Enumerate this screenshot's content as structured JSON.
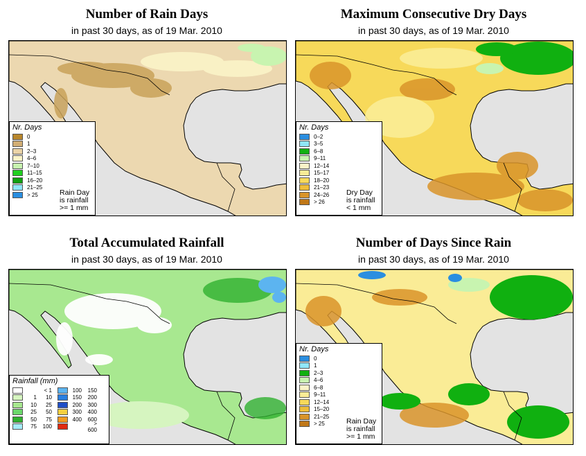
{
  "colors": {
    "ocean": "#e3e3e3",
    "dry_brown": "#c9a25a",
    "light_tan": "#f0e2c2",
    "border": "#000000"
  },
  "panels": [
    {
      "title": "Number of Rain Days",
      "subtitle": "in past 30 days, as of  19 Mar. 2010",
      "legend_title": "Nr. Days",
      "legend": [
        {
          "label": "0",
          "color": "#b8862c"
        },
        {
          "label": "1",
          "color": "#d2ae74"
        },
        {
          "label": "2–3",
          "color": "#ead3a6"
        },
        {
          "label": "4–6",
          "color": "#fbf4c8"
        },
        {
          "label": "7–10",
          "color": "#c8f4b0"
        },
        {
          "label": "11–15",
          "color": "#20d020"
        },
        {
          "label": "16–20",
          "color": "#10a010"
        },
        {
          "label": "21–25",
          "color": "#90e6f8"
        },
        {
          "label": "> 25",
          "color": "#2a8ee0"
        }
      ],
      "note": [
        "Rain Day",
        "is rainfall",
        ">= 1 mm"
      ]
    },
    {
      "title": "Maximum Consecutive Dry Days",
      "subtitle": "in past 30 days, as of  19 Mar. 2010",
      "legend_title": "Nr. Days",
      "legend": [
        {
          "label": "0–2",
          "color": "#2a8ee0"
        },
        {
          "label": "3–5",
          "color": "#90e6f8"
        },
        {
          "label": "6–8",
          "color": "#10b010"
        },
        {
          "label": "9–11",
          "color": "#c8f4b0"
        },
        {
          "label": "12–14",
          "color": "#fbf4c8"
        },
        {
          "label": "15–17",
          "color": "#faec96"
        },
        {
          "label": "18–20",
          "color": "#f7d95a"
        },
        {
          "label": "21–23",
          "color": "#eebd3a"
        },
        {
          "label": "24–26",
          "color": "#d9942a"
        },
        {
          "label": "> 26",
          "color": "#c07818"
        }
      ],
      "note": [
        "Dry Day",
        "is rainfall",
        "< 1 mm"
      ]
    },
    {
      "title": "Total Accumulated Rainfall",
      "subtitle": "in past 30 days, as of  19 Mar. 2010",
      "legend_title": "Rainfall (mm)",
      "legend_col1": [
        {
          "lo": "",
          "hi": "< 1",
          "color": "#ffffff"
        },
        {
          "lo": "1",
          "hi": "10",
          "color": "#d6f5c0"
        },
        {
          "lo": "10",
          "hi": "25",
          "color": "#a8e890"
        },
        {
          "lo": "25",
          "hi": "50",
          "color": "#6cd86c"
        },
        {
          "lo": "50",
          "hi": "75",
          "color": "#30b030"
        },
        {
          "lo": "75",
          "hi": "100",
          "color": "#a6ecf8"
        }
      ],
      "legend_col2": [
        {
          "lo": "100",
          "hi": "150",
          "color": "#5cb4f0"
        },
        {
          "lo": "150",
          "hi": "200",
          "color": "#2a7fe0"
        },
        {
          "lo": "200",
          "hi": "300",
          "color": "#1f4fc8"
        },
        {
          "lo": "300",
          "hi": "400",
          "color": "#f6d040"
        },
        {
          "lo": "400",
          "hi": "600",
          "color": "#f29a20"
        },
        {
          "lo": "",
          "hi": "> 600",
          "color": "#e02a10"
        }
      ]
    },
    {
      "title": "Number of Days Since Rain",
      "subtitle": "in past 30 days, as of  19 Mar. 2010",
      "legend_title": "Nr. Days",
      "legend": [
        {
          "label": "0",
          "color": "#2a8ee0"
        },
        {
          "label": "1",
          "color": "#90e6f8"
        },
        {
          "label": "2–3",
          "color": "#10b010"
        },
        {
          "label": "4–6",
          "color": "#c8f4b0"
        },
        {
          "label": "6–8",
          "color": "#fbf4c8"
        },
        {
          "label": "9–11",
          "color": "#faec96"
        },
        {
          "label": "12–14",
          "color": "#f7d95a"
        },
        {
          "label": "15–20",
          "color": "#eebd3a"
        },
        {
          "label": "21–25",
          "color": "#d9942a"
        },
        {
          "label": "> 25",
          "color": "#c07818"
        }
      ],
      "note": [
        "Rain Day",
        "is rainfall",
        ">= 1 mm"
      ]
    }
  ]
}
